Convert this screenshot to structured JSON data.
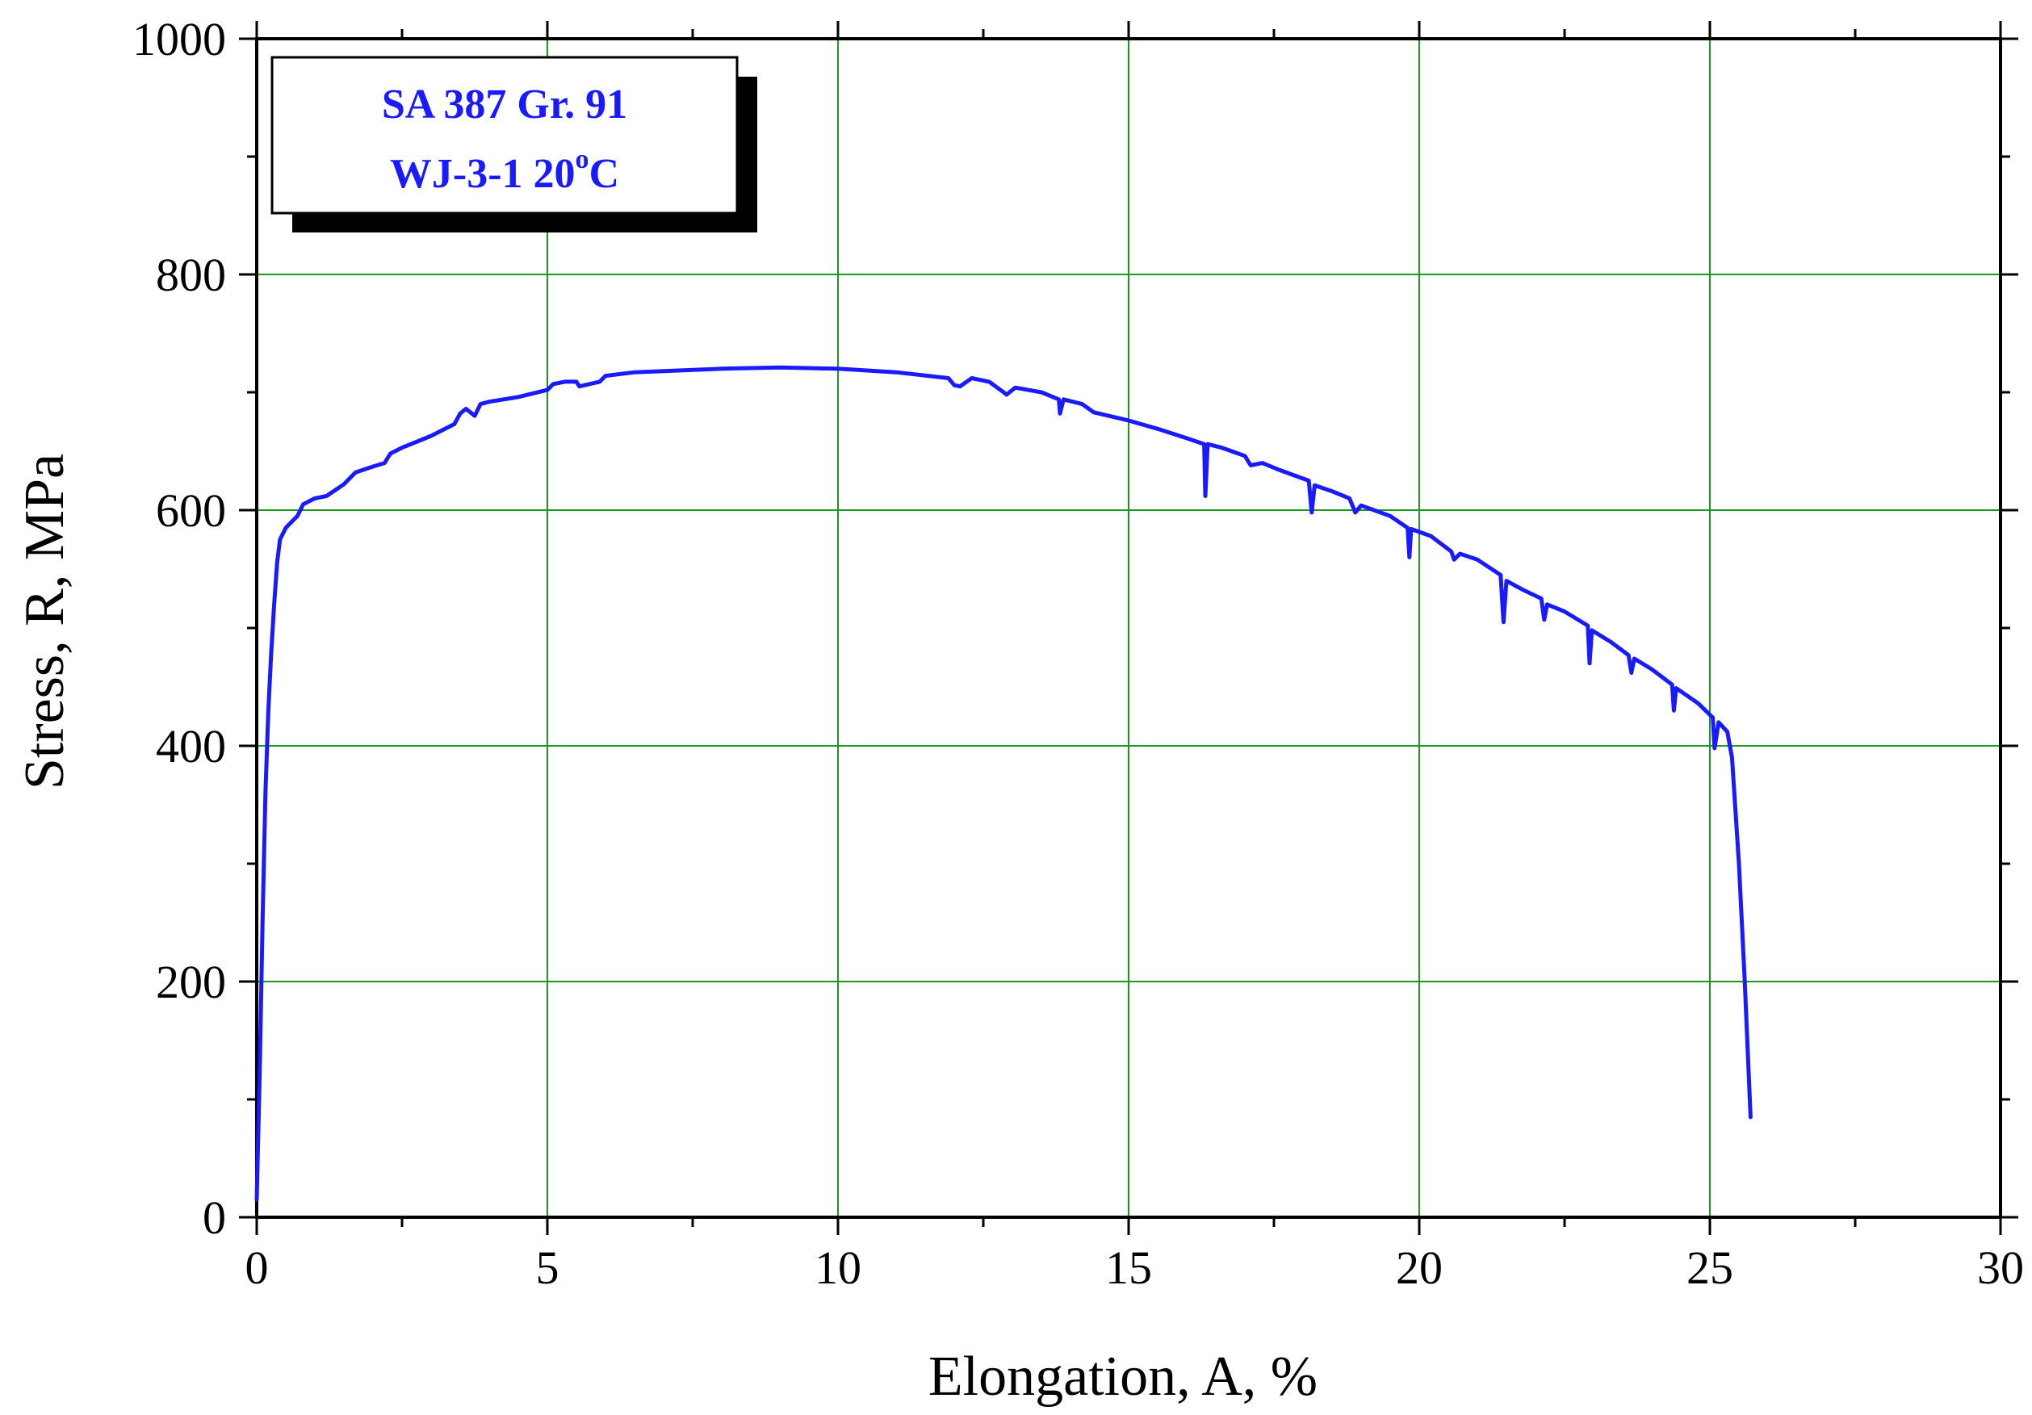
{
  "chart_data": {
    "type": "line",
    "title": "",
    "xlabel": "Elongation,   A, %",
    "ylabel": "Stress,  R, MPa",
    "xlim": [
      0,
      30
    ],
    "ylim": [
      0,
      1000
    ],
    "x_ticks": [
      0,
      5,
      10,
      15,
      20,
      25,
      30
    ],
    "x_tick_labels": [
      "0",
      "5",
      "10",
      "15",
      "20",
      "25",
      "30"
    ],
    "y_ticks": [
      0,
      200,
      400,
      600,
      800,
      1000
    ],
    "y_tick_labels": [
      "0",
      "200",
      "400",
      "600",
      "800",
      "1000"
    ],
    "x_minor_step": 2.5,
    "y_minor_step": 100,
    "grid": true,
    "grid_color": "#1a9a1a",
    "legend": {
      "position": "top-left",
      "line1": "SA 387 Gr. 91",
      "line2_main": "WJ-3-1   20",
      "line2_sup": "o",
      "line2_tail": "C"
    },
    "series": [
      {
        "color": "#1a1aff",
        "points": [
          [
            0.0,
            15
          ],
          [
            0.05,
            120
          ],
          [
            0.1,
            250
          ],
          [
            0.15,
            360
          ],
          [
            0.2,
            430
          ],
          [
            0.25,
            480
          ],
          [
            0.3,
            520
          ],
          [
            0.35,
            555
          ],
          [
            0.4,
            575
          ],
          [
            0.5,
            585
          ],
          [
            0.7,
            595
          ],
          [
            0.8,
            605
          ],
          [
            1.0,
            610
          ],
          [
            1.2,
            612
          ],
          [
            1.5,
            622
          ],
          [
            1.7,
            632
          ],
          [
            2.0,
            637
          ],
          [
            2.2,
            640
          ],
          [
            2.3,
            648
          ],
          [
            2.5,
            653
          ],
          [
            3.0,
            663
          ],
          [
            3.4,
            673
          ],
          [
            3.5,
            682
          ],
          [
            3.6,
            686
          ],
          [
            3.75,
            680
          ],
          [
            3.85,
            690
          ],
          [
            4.0,
            692
          ],
          [
            4.5,
            696
          ],
          [
            5.0,
            702
          ],
          [
            5.1,
            707
          ],
          [
            5.3,
            709
          ],
          [
            5.5,
            709
          ],
          [
            5.55,
            705
          ],
          [
            5.9,
            709
          ],
          [
            6.0,
            714
          ],
          [
            6.5,
            717
          ],
          [
            7.0,
            718
          ],
          [
            8.0,
            720
          ],
          [
            9.0,
            721
          ],
          [
            10.0,
            720
          ],
          [
            11.0,
            717
          ],
          [
            11.9,
            712
          ],
          [
            12.0,
            706
          ],
          [
            12.1,
            705
          ],
          [
            12.3,
            712
          ],
          [
            12.6,
            709
          ],
          [
            12.85,
            700
          ],
          [
            12.9,
            698
          ],
          [
            13.05,
            704
          ],
          [
            13.5,
            700
          ],
          [
            13.8,
            694
          ],
          [
            13.82,
            682
          ],
          [
            13.88,
            694
          ],
          [
            14.2,
            690
          ],
          [
            14.4,
            683
          ],
          [
            15.0,
            676
          ],
          [
            15.5,
            669
          ],
          [
            16.0,
            661
          ],
          [
            16.3,
            656
          ],
          [
            16.32,
            612
          ],
          [
            16.36,
            656
          ],
          [
            16.6,
            653
          ],
          [
            17.0,
            646
          ],
          [
            17.1,
            638
          ],
          [
            17.3,
            640
          ],
          [
            17.6,
            634
          ],
          [
            18.1,
            625
          ],
          [
            18.15,
            598
          ],
          [
            18.2,
            621
          ],
          [
            18.5,
            616
          ],
          [
            18.8,
            610
          ],
          [
            18.9,
            598
          ],
          [
            19.0,
            604
          ],
          [
            19.5,
            595
          ],
          [
            19.8,
            585
          ],
          [
            19.83,
            560
          ],
          [
            19.86,
            584
          ],
          [
            20.2,
            578
          ],
          [
            20.55,
            565
          ],
          [
            20.6,
            558
          ],
          [
            20.7,
            563
          ],
          [
            21.0,
            558
          ],
          [
            21.4,
            545
          ],
          [
            21.45,
            505
          ],
          [
            21.5,
            540
          ],
          [
            21.8,
            532
          ],
          [
            22.1,
            525
          ],
          [
            22.15,
            507
          ],
          [
            22.2,
            520
          ],
          [
            22.5,
            514
          ],
          [
            22.9,
            502
          ],
          [
            22.93,
            470
          ],
          [
            22.97,
            498
          ],
          [
            23.3,
            488
          ],
          [
            23.6,
            477
          ],
          [
            23.65,
            462
          ],
          [
            23.7,
            474
          ],
          [
            24.0,
            465
          ],
          [
            24.35,
            452
          ],
          [
            24.38,
            430
          ],
          [
            24.42,
            449
          ],
          [
            24.8,
            436
          ],
          [
            25.05,
            424
          ],
          [
            25.08,
            398
          ],
          [
            25.15,
            420
          ],
          [
            25.3,
            412
          ],
          [
            25.38,
            390
          ],
          [
            25.5,
            300
          ],
          [
            25.6,
            200
          ],
          [
            25.7,
            85
          ]
        ]
      }
    ]
  }
}
